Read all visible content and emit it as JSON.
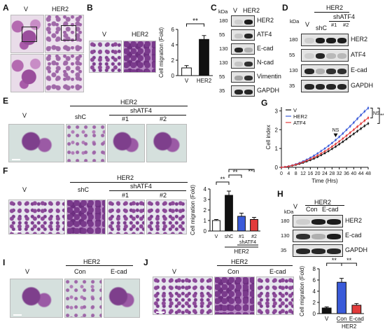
{
  "panels": {
    "A": {
      "letter": "A",
      "labels": [
        "V",
        "HER2"
      ]
    },
    "B": {
      "letter": "B",
      "labels": [
        "V",
        "HER2"
      ],
      "chart_data": {
        "type": "bar",
        "categories": [
          "V",
          "HER2"
        ],
        "values": [
          1.0,
          4.7
        ],
        "errors": [
          0.3,
          0.5
        ],
        "ylabel": "Cell migration (Fold)",
        "ylim": [
          0,
          6
        ],
        "yticks": [
          "0",
          "2",
          "4",
          "6"
        ],
        "significance": "**",
        "colors": [
          "#ffffff",
          "#111111"
        ]
      }
    },
    "C": {
      "letter": "C",
      "kda": "kDa",
      "lanes": [
        "V",
        "HER2"
      ],
      "markers": [
        "180",
        "55",
        "130",
        "130",
        "55",
        "35"
      ],
      "proteins": [
        "HER2",
        "ATF4",
        "E-cad",
        "N-cad",
        "Vimentin",
        "GAPDH"
      ]
    },
    "D": {
      "letter": "D",
      "kda": "kDa",
      "group": "HER2",
      "lanes": [
        "V",
        "shC",
        "#1",
        "#2"
      ],
      "sub_group": "shATF4",
      "markers": [
        "180",
        "55",
        "130",
        "35"
      ],
      "proteins": [
        "HER2",
        "ATF4",
        "E-cad",
        "GAPDH"
      ]
    },
    "E": {
      "letter": "E",
      "group": "HER2",
      "sub_group": "shATF4",
      "labels": [
        "V",
        "shC",
        "#1",
        "#2"
      ]
    },
    "F": {
      "letter": "F",
      "group": "HER2",
      "sub_group": "shATF4",
      "labels": [
        "V",
        "shC",
        "#1",
        "#2"
      ],
      "chart_data": {
        "type": "bar",
        "categories": [
          "V",
          "shC",
          "#1",
          "#2"
        ],
        "values": [
          1.0,
          3.4,
          1.4,
          1.1
        ],
        "errors": [
          0.1,
          0.4,
          0.3,
          0.2
        ],
        "ylabel": "Cell migration (Fold)",
        "ylim": [
          0,
          4
        ],
        "yticks": [
          "0",
          "1",
          "2",
          "3",
          "4"
        ],
        "significance": [
          "**",
          "**",
          "**"
        ],
        "colors": [
          "#ffffff",
          "#111111",
          "#3a5bd9",
          "#e23b3b"
        ],
        "group": "HER2",
        "sub_group": "shATF4"
      }
    },
    "G": {
      "letter": "G",
      "chart_data": {
        "type": "line",
        "x": [
          0,
          2,
          4,
          6,
          8,
          10,
          12,
          14,
          16,
          18,
          20,
          22,
          24,
          26,
          28,
          30,
          32,
          34,
          36,
          38,
          40,
          42,
          44,
          46,
          48
        ],
        "series": [
          {
            "name": "V",
            "color": "#111111",
            "values": [
              0,
              0.02,
              0.05,
              0.09,
              0.13,
              0.18,
              0.24,
              0.31,
              0.38,
              0.46,
              0.55,
              0.65,
              0.75,
              0.86,
              0.98,
              1.1,
              1.23,
              1.36,
              1.5,
              1.64,
              1.78,
              1.92,
              2.06,
              2.2,
              2.33
            ]
          },
          {
            "name": "HER2",
            "color": "#3a5bd9",
            "values": [
              0,
              0.02,
              0.06,
              0.11,
              0.17,
              0.24,
              0.32,
              0.41,
              0.51,
              0.62,
              0.74,
              0.87,
              1.0,
              1.14,
              1.29,
              1.45,
              1.62,
              1.8,
              1.99,
              2.18,
              2.38,
              2.58,
              2.78,
              2.97,
              3.15
            ]
          },
          {
            "name": "ATF4",
            "color": "#e23b3b",
            "values": [
              0,
              0.02,
              0.05,
              0.1,
              0.15,
              0.21,
              0.28,
              0.36,
              0.44,
              0.53,
              0.63,
              0.74,
              0.85,
              0.97,
              1.1,
              1.24,
              1.38,
              1.53,
              1.68,
              1.84,
              2.0,
              2.16,
              2.32,
              2.48,
              2.63
            ]
          }
        ],
        "xlabel": "Time (Hrs)",
        "ylabel": "Cell index",
        "ylim": [
          0,
          3.2
        ],
        "yticks": [
          "0",
          "1",
          "2",
          "3"
        ],
        "xticks": [
          "0",
          "4",
          "8",
          "12",
          "16",
          "20",
          "24",
          "28",
          "32",
          "36",
          "40",
          "44",
          "48"
        ],
        "annotations": [
          "NS",
          "NS",
          "**"
        ],
        "legend": "top-left"
      }
    },
    "H": {
      "letter": "H",
      "kda": "kDa",
      "group": "HER2",
      "lanes": [
        "V",
        "Con",
        "E-cad"
      ],
      "markers": [
        "180",
        "130",
        "35"
      ],
      "proteins": [
        "HER2",
        "E-cad",
        "GAPDH"
      ]
    },
    "I": {
      "letter": "I",
      "group": "HER2",
      "labels": [
        "V",
        "Con",
        "E-cad"
      ]
    },
    "J": {
      "letter": "J",
      "group": "HER2",
      "labels": [
        "V",
        "Con",
        "E-cad"
      ],
      "chart_data": {
        "type": "bar",
        "categories": [
          "V",
          "Con",
          "E-cad"
        ],
        "values": [
          1.0,
          5.6,
          1.5
        ],
        "errors": [
          0.2,
          0.7,
          0.3
        ],
        "ylabel": "Cell migration (Fold)",
        "ylim": [
          0,
          8
        ],
        "yticks": [
          "0",
          "2",
          "4",
          "6",
          "8"
        ],
        "significance": [
          "**",
          "**"
        ],
        "colors": [
          "#111111",
          "#3a5bd9",
          "#e23b3b"
        ],
        "group": "HER2"
      }
    }
  }
}
